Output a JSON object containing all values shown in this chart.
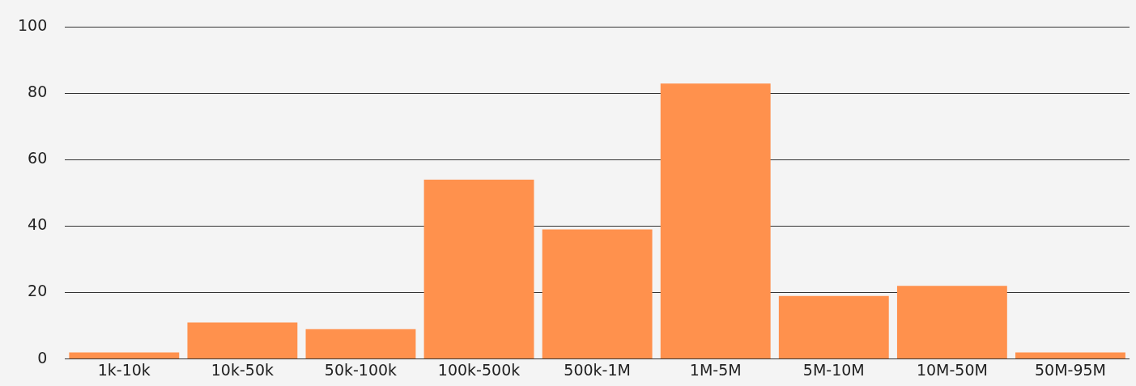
{
  "chart_data": {
    "type": "bar",
    "categories": [
      "1k-10k",
      "10k-50k",
      "50k-100k",
      "100k-500k",
      "500k-1M",
      "1M-5M",
      "5M-10M",
      "10M-50M",
      "50M-95M"
    ],
    "values": [
      2,
      11,
      9,
      54,
      39,
      83,
      19,
      22,
      2
    ],
    "color": "#ff914d",
    "ylim": [
      0,
      100
    ],
    "yticks": [
      0,
      20,
      40,
      60,
      80,
      100
    ],
    "grid": "y",
    "legend": false
  }
}
